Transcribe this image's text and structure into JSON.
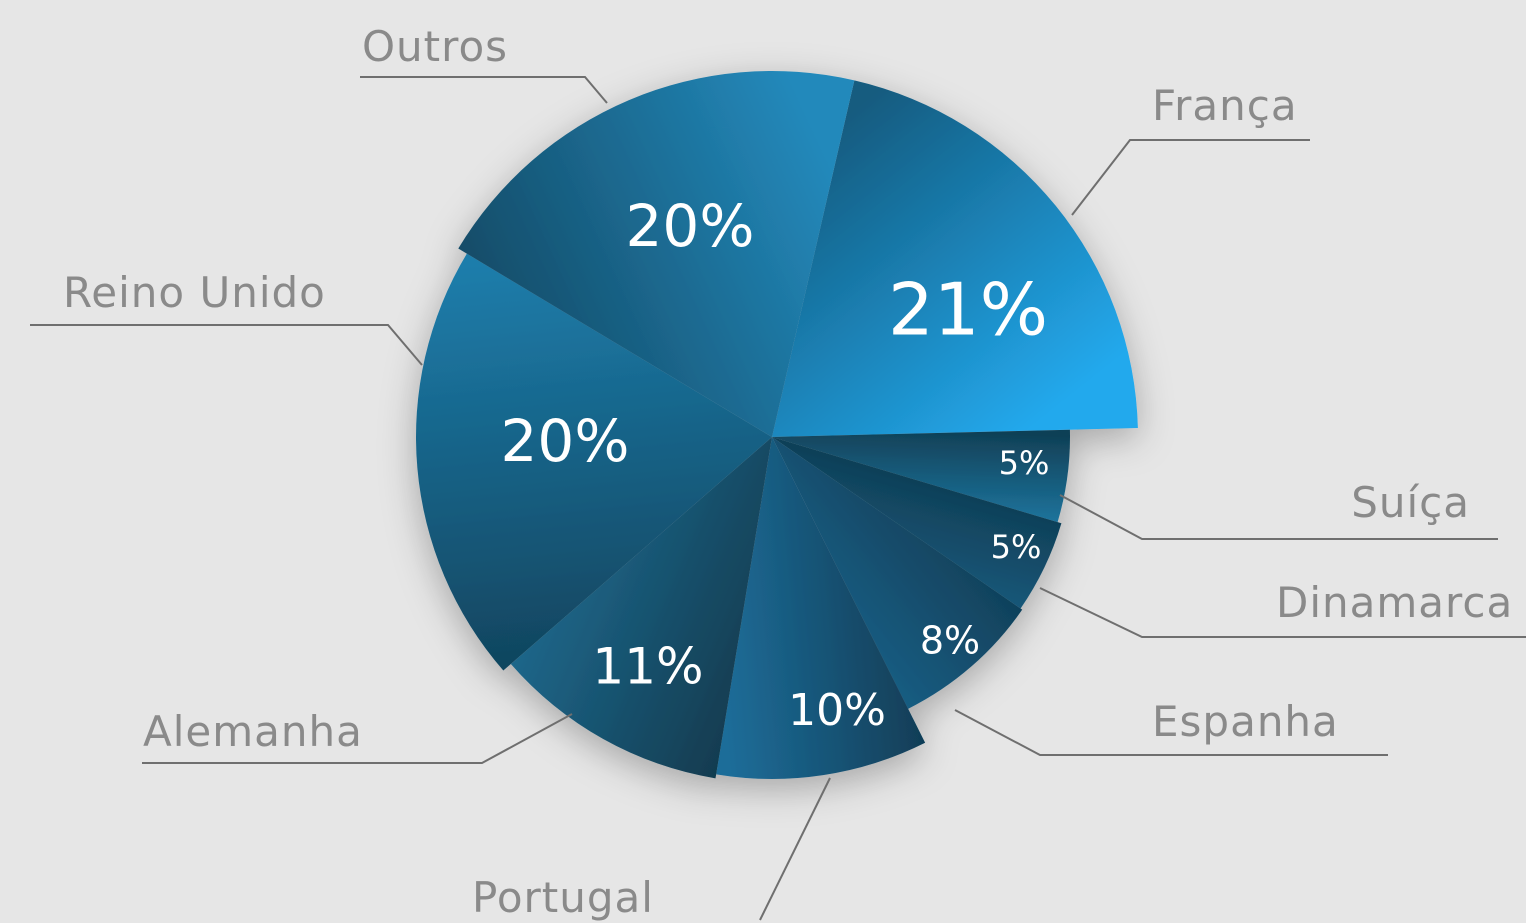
{
  "chart_data": {
    "type": "pie",
    "categories": [
      "França",
      "Suíça",
      "Dinamarca",
      "Espanha",
      "Portugal",
      "Alemanha",
      "Reino Unido",
      "Outros"
    ],
    "values": [
      21,
      5,
      5,
      8,
      10,
      11,
      20,
      20
    ],
    "value_labels": [
      "21%",
      "5%",
      "5%",
      "8%",
      "10%",
      "11%",
      "20%",
      "20%"
    ],
    "colors": [
      "#1f97d4",
      "#1b6a90",
      "#155677",
      "#175b80",
      "#1a6189",
      "#1d6284",
      "#1a7099",
      "#1f7aa7"
    ]
  }
}
